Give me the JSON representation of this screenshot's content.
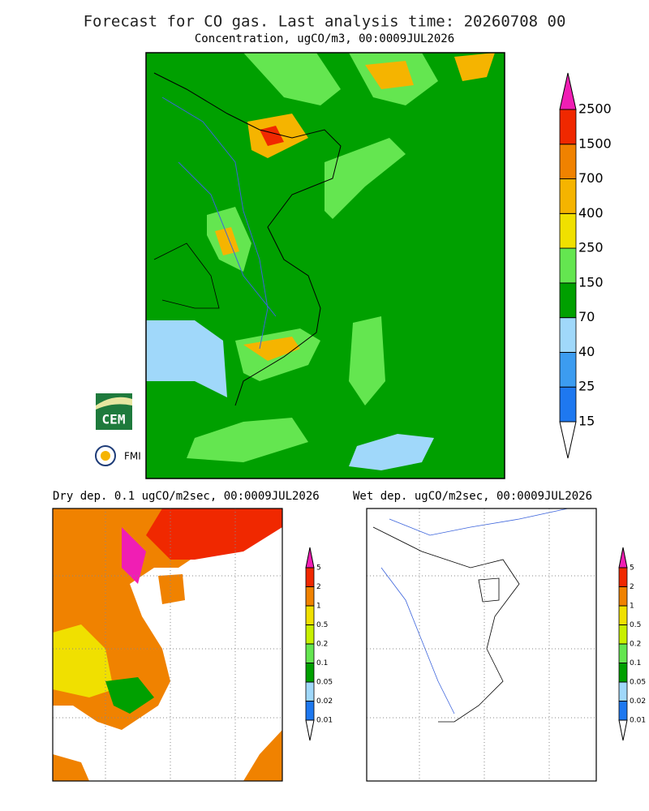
{
  "title": "Forecast for CO gas. Last analysis time: 20260708 00",
  "logos": {
    "cem": "CEM",
    "fmi": "FMI"
  },
  "maps": [
    {
      "subtitle": "Concentration, ugCO/m3, 00:0009JUL2026",
      "levels": [
        15,
        25,
        40,
        70,
        150,
        250,
        400,
        700,
        1500,
        2500
      ],
      "colors": [
        "#1e78f0",
        "#3c9cf0",
        "#a0d8fa",
        "#00a000",
        "#64e650",
        "#f0e000",
        "#f5b400",
        "#f08200",
        "#f02800"
      ],
      "over_color": "#f01eb4",
      "under_color": "#ffffff"
    },
    {
      "subtitle": "Dry dep. 0.1 ugCO/m2sec, 00:0009JUL2026",
      "levels": [
        0.01,
        0.02,
        0.05,
        0.1,
        0.2,
        0.5,
        1,
        2,
        5
      ],
      "colors": [
        "#1e78f0",
        "#a0d8fa",
        "#00a000",
        "#64e650",
        "#c8f000",
        "#f0e000",
        "#f08200",
        "#f02800"
      ],
      "over_color": "#f01eb4",
      "under_color": "#ffffff"
    },
    {
      "subtitle": "Wet dep. ugCO/m2sec, 00:0009JUL2026",
      "levels": [
        0.01,
        0.02,
        0.05,
        0.1,
        0.2,
        0.5,
        1,
        2,
        5
      ],
      "colors": [
        "#1e78f0",
        "#a0d8fa",
        "#00a000",
        "#64e650",
        "#c8f000",
        "#f0e000",
        "#f08200",
        "#f02800"
      ],
      "over_color": "#f01eb4",
      "under_color": "#ffffff"
    }
  ]
}
